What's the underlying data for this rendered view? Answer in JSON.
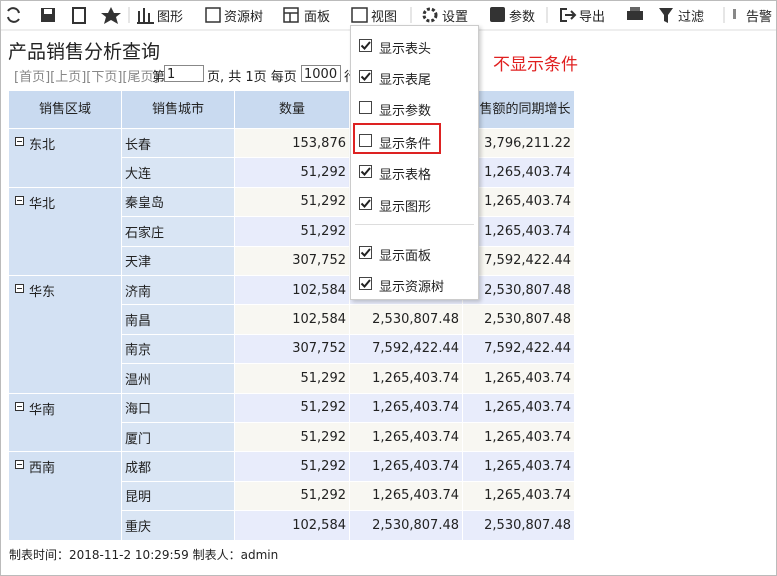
{
  "toolbar": {
    "items": [
      "图形",
      "资源树",
      "面板",
      "视图",
      "设置",
      "参数",
      "导出",
      "过滤",
      "告警"
    ]
  },
  "header": {
    "title": "产品销售分析查询"
  },
  "pager": {
    "links": "[首页][上页][下页][尾页]",
    "before": "第",
    "page": "1",
    "middle": "页, 共 1页 每页",
    "size": "1000",
    "after": "行"
  },
  "table": {
    "columns": [
      "销售区域",
      "销售城市",
      "数量",
      "销售额的同期增长"
    ],
    "regions": [
      {
        "name": "东北",
        "rows": [
          {
            "city": "长春",
            "qty": "153,876",
            "growth": "3,796,211.22"
          },
          {
            "city": "大连",
            "qty": "51,292",
            "growth": "1,265,403.74"
          }
        ]
      },
      {
        "name": "华北",
        "rows": [
          {
            "city": "秦皇岛",
            "qty": "51,292",
            "growth": "1,265,403.74"
          },
          {
            "city": "石家庄",
            "qty": "51,292",
            "growth": "1,265,403.74"
          },
          {
            "city": "天津",
            "qty": "307,752",
            "growth": "7,592,422.44"
          }
        ]
      },
      {
        "name": "华东",
        "rows": [
          {
            "city": "济南",
            "qty": "102,584",
            "growth": "2,530,807.48"
          },
          {
            "city": "南昌",
            "qty": "102,584",
            "amount": "2,530,807.48",
            "growth": "2,530,807.48"
          },
          {
            "city": "南京",
            "qty": "307,752",
            "amount": "7,592,422.44",
            "growth": "7,592,422.44"
          },
          {
            "city": "温州",
            "qty": "51,292",
            "amount": "1,265,403.74",
            "growth": "1,265,403.74"
          }
        ]
      },
      {
        "name": "华南",
        "rows": [
          {
            "city": "海口",
            "qty": "51,292",
            "amount": "1,265,403.74",
            "growth": "1,265,403.74"
          },
          {
            "city": "厦门",
            "qty": "51,292",
            "amount": "1,265,403.74",
            "growth": "1,265,403.74"
          }
        ]
      },
      {
        "name": "西南",
        "rows": [
          {
            "city": "成都",
            "qty": "51,292",
            "amount": "1,265,403.74",
            "growth": "1,265,403.74"
          },
          {
            "city": "昆明",
            "qty": "51,292",
            "amount": "1,265,403.74",
            "growth": "1,265,403.74"
          },
          {
            "city": "重庆",
            "qty": "102,584",
            "amount": "2,530,807.48",
            "growth": "2,530,807.48"
          }
        ]
      }
    ]
  },
  "footer": {
    "text": "制表时间：2018-11-2 10:29:59 制表人：admin"
  },
  "menu": {
    "items": [
      {
        "label": "显示表头",
        "checked": true
      },
      {
        "label": "显示表尾",
        "checked": true
      },
      {
        "label": "显示参数",
        "checked": false
      },
      {
        "label": "显示条件",
        "checked": false
      },
      {
        "label": "显示表格",
        "checked": true
      },
      {
        "label": "显示图形",
        "checked": true
      },
      {
        "label": "显示面板",
        "checked": true
      },
      {
        "label": "显示资源树",
        "checked": true
      }
    ]
  },
  "annotation": {
    "text": "不显示条件"
  }
}
